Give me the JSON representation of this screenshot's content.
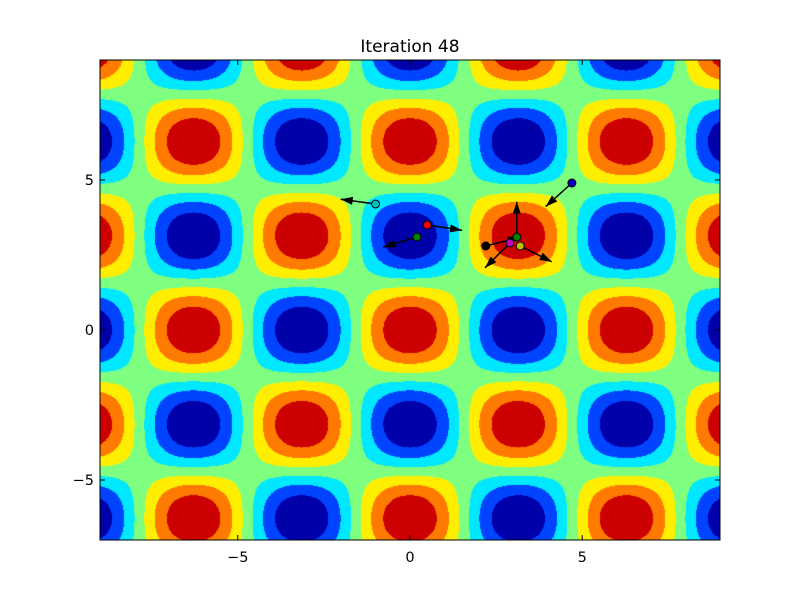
{
  "chart_data": {
    "type": "contour",
    "title": "Iteration 48",
    "xlabel": "",
    "ylabel": "",
    "xlim": [
      -9,
      9
    ],
    "ylim": [
      -7,
      9
    ],
    "xticks": [
      {
        "value": -5,
        "label": "−5"
      },
      {
        "value": 0,
        "label": "0"
      },
      {
        "value": 5,
        "label": "5"
      }
    ],
    "yticks": [
      {
        "value": -5,
        "label": "−5"
      },
      {
        "value": 0,
        "label": "0"
      },
      {
        "value": 5,
        "label": "5"
      }
    ],
    "grid": false,
    "colormap": "jet",
    "levels": 7,
    "level_colors": [
      "#0000aa",
      "#0044ff",
      "#00e8ff",
      "#7fff7f",
      "#ffee00",
      "#ff7a00",
      "#cc0000"
    ],
    "field": "cos(x) * cos(y)",
    "particles": [
      {
        "color": "#0000bb",
        "x": 4.7,
        "y": 4.9,
        "vx": -1.0,
        "vy": -0.9
      },
      {
        "color": "#00bfbf",
        "x": -1.0,
        "y": 4.2,
        "vx": -1.1,
        "vy": 0.15
      },
      {
        "color": "#008000",
        "x": 0.2,
        "y": 3.1,
        "vx": -1.0,
        "vy": -0.3
      },
      {
        "color": "#ff0000",
        "x": 0.5,
        "y": 3.5,
        "vx": 1.0,
        "vy": -0.15
      },
      {
        "color": "#000000",
        "x": 2.2,
        "y": 2.8,
        "vx": 0.8,
        "vy": 0.2
      },
      {
        "color": "#bf00bf",
        "x": 2.9,
        "y": 2.9,
        "vx": -0.5,
        "vy": -0.5
      },
      {
        "color": "#bfbf00",
        "x": 3.2,
        "y": 2.8,
        "vx": 0.6,
        "vy": -0.3
      },
      {
        "color": "#008000",
        "x": 3.1,
        "y": 3.1,
        "vx": 0.0,
        "vy": 0.6
      }
    ]
  }
}
